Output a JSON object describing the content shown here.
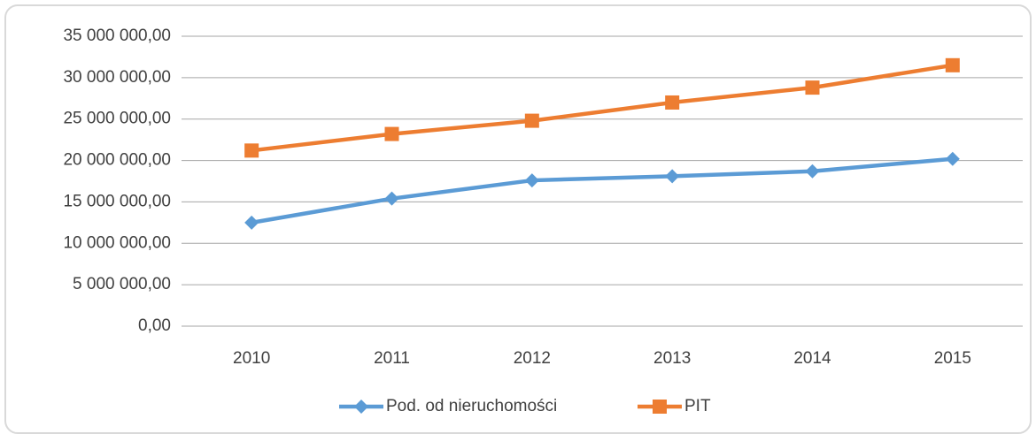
{
  "chart_data": {
    "type": "line",
    "categories": [
      "2010",
      "2011",
      "2012",
      "2013",
      "2014",
      "2015"
    ],
    "series": [
      {
        "name": "Pod. od nieruchomości",
        "color": "#5b9bd5",
        "marker": "diamond",
        "values": [
          12500000,
          15400000,
          17600000,
          18100000,
          18700000,
          20200000
        ]
      },
      {
        "name": "PIT",
        "color": "#ed7d31",
        "marker": "square",
        "values": [
          21200000,
          23200000,
          24800000,
          27000000,
          28800000,
          31500000
        ]
      }
    ],
    "ylim": [
      0,
      35000000
    ],
    "yticks": [
      {
        "value": 0,
        "label": "0,00"
      },
      {
        "value": 5000000,
        "label": "5 000 000,00"
      },
      {
        "value": 10000000,
        "label": "10 000 000,00"
      },
      {
        "value": 15000000,
        "label": "15 000 000,00"
      },
      {
        "value": 20000000,
        "label": "20 000 000,00"
      },
      {
        "value": 25000000,
        "label": "25 000 000,00"
      },
      {
        "value": 30000000,
        "label": "30 000 000,00"
      },
      {
        "value": 35000000,
        "label": "35 000 000,00"
      }
    ],
    "grid": true,
    "legend": "bottom"
  }
}
